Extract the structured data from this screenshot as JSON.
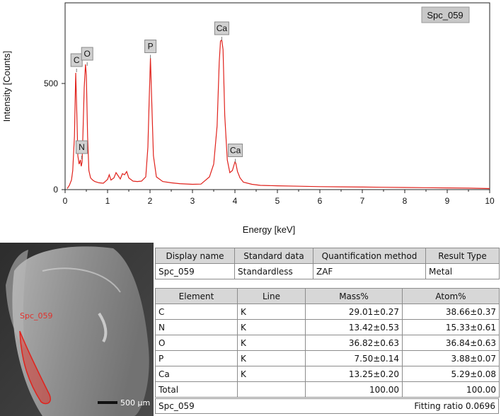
{
  "spectrum": {
    "sample_label": "Spc_059",
    "chart_data": {
      "type": "line",
      "xlabel": "Energy [keV]",
      "ylabel": "Intensity [Counts]",
      "xlim": [
        0,
        10
      ],
      "ylim": [
        0,
        880
      ],
      "xticks": [
        "0",
        "1",
        "2",
        "3",
        "4",
        "5",
        "6",
        "7",
        "8",
        "9",
        "10"
      ],
      "yticks": [
        "0",
        "500"
      ],
      "grid": false,
      "color": "#e0221c",
      "series": [
        {
          "x": [
            0.05,
            0.1,
            0.15,
            0.18,
            0.22,
            0.25,
            0.28,
            0.3,
            0.33,
            0.36,
            0.38,
            0.4,
            0.42,
            0.45,
            0.48,
            0.5,
            0.53,
            0.56,
            0.6,
            0.65,
            0.7,
            0.8,
            0.9,
            1.0,
            1.04,
            1.08,
            1.15,
            1.2,
            1.25,
            1.3,
            1.35,
            1.4,
            1.45,
            1.5,
            1.6,
            1.7,
            1.8,
            1.9,
            1.95,
            1.98,
            2.01,
            2.04,
            2.08,
            2.15,
            2.3,
            2.5,
            2.7,
            3.0,
            3.2,
            3.4,
            3.5,
            3.58,
            3.63,
            3.66,
            3.69,
            3.72,
            3.76,
            3.82,
            3.88,
            3.94,
            4.0,
            4.02,
            4.06,
            4.12,
            4.2,
            4.4,
            4.6,
            5.0,
            5.5,
            6.0,
            6.5,
            7.0,
            7.5,
            8.0,
            8.5,
            9.0,
            9.5,
            10.0
          ],
          "y": [
            5,
            20,
            45,
            90,
            250,
            550,
            330,
            160,
            120,
            140,
            110,
            130,
            260,
            480,
            590,
            540,
            250,
            90,
            55,
            45,
            38,
            32,
            30,
            48,
            70,
            45,
            55,
            80,
            65,
            50,
            75,
            70,
            85,
            55,
            40,
            38,
            40,
            60,
            200,
            420,
            620,
            420,
            160,
            60,
            38,
            32,
            28,
            25,
            26,
            60,
            120,
            300,
            600,
            700,
            705,
            660,
            350,
            140,
            80,
            90,
            130,
            125,
            85,
            55,
            35,
            25,
            20,
            18,
            16,
            14,
            13,
            12,
            11,
            10,
            9,
            8,
            7,
            5
          ]
        }
      ],
      "annotations": [
        {
          "label": "C",
          "x": 0.27,
          "y": 560
        },
        {
          "label": "N",
          "x": 0.39,
          "y": 150
        },
        {
          "label": "O",
          "x": 0.52,
          "y": 590
        },
        {
          "label": "P",
          "x": 2.01,
          "y": 625
        },
        {
          "label": "Ca",
          "x": 3.69,
          "y": 710
        },
        {
          "label": "Ca",
          "x": 4.01,
          "y": 135
        }
      ]
    }
  },
  "sem_image": {
    "region_label": "Spc_059",
    "scale_bar": "500 µm"
  },
  "info_table": {
    "headers": [
      "Display name",
      "Standard data",
      "Quantification method",
      "Result Type"
    ],
    "row": [
      "Spc_059",
      "Standardless",
      "ZAF",
      "Metal"
    ]
  },
  "element_table": {
    "headers": [
      "Element",
      "Line",
      "Mass%",
      "Atom%"
    ],
    "rows": [
      [
        "C",
        "K",
        "29.01±0.27",
        "38.66±0.37"
      ],
      [
        "N",
        "K",
        "13.42±0.53",
        "15.33±0.61"
      ],
      [
        "O",
        "K",
        "36.82±0.63",
        "36.84±0.63"
      ],
      [
        "P",
        "K",
        "7.50±0.14",
        "3.88±0.07"
      ],
      [
        "Ca",
        "K",
        "13.25±0.20",
        "5.29±0.08"
      ]
    ],
    "total": [
      "Total",
      "",
      "100.00",
      "100.00"
    ]
  },
  "footer": {
    "name": "Spc_059",
    "fitting": "Fitting ratio 0.0696"
  }
}
